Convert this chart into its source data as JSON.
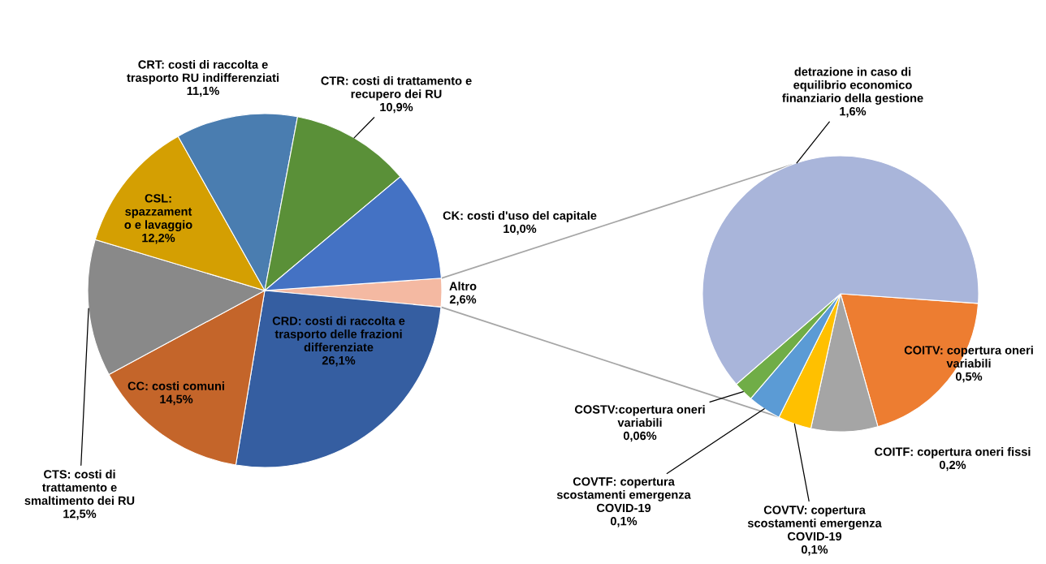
{
  "chart_data": [
    {
      "type": "pie",
      "categories": [
        "Altro",
        "CRD: costi di raccolta e\ntrasporto delle frazioni\ndifferenziate",
        "CC: costi comuni",
        "CTS: costi di\ntrattamento e\nsmaltimento dei RU",
        "CSL:\nspazzament\no e lavaggio",
        "CRT: costi di raccolta e\ntrasporto RU indifferenziati",
        "CTR: costi di trattamento e\nrecupero dei RU",
        "CK: costi d'uso del capitale"
      ],
      "values": [
        2.6,
        26.1,
        14.5,
        12.5,
        12.2,
        11.1,
        10.9,
        10.0
      ],
      "value_labels": [
        "2,6%",
        "26,1%",
        "14,5%",
        "12,5%",
        "12,2%",
        "11,1%",
        "10,9%",
        "10,0%"
      ],
      "colors": [
        "#f4b9a2",
        "#355ea1",
        "#c4652a",
        "#898989",
        "#d49f02",
        "#4a7db0",
        "#5a9038",
        "#4472c4"
      ]
    },
    {
      "type": "pie",
      "categories": [
        "COITV: copertura oneri\nvariabili",
        "COITF: copertura oneri fissi",
        "COVTV: copertura\nscostamenti emergenza\nCOVID-19",
        "COVTF: copertura\nscostamenti emergenza\nCOVID-19",
        "COSTV:copertura oneri\nvariabili",
        "detrazione in caso di\nequilibrio economico\nfinanziario della gestione"
      ],
      "values": [
        0.5,
        0.2,
        0.1,
        0.1,
        0.06,
        1.6
      ],
      "value_labels": [
        "0,5%",
        "0,2%",
        "0,1%",
        "0,1%",
        "0,06%",
        "1,6%"
      ],
      "colors": [
        "#ed7d31",
        "#a5a5a5",
        "#ffc000",
        "#5b9bd5",
        "#70ad47",
        "#a9b5da"
      ]
    }
  ]
}
